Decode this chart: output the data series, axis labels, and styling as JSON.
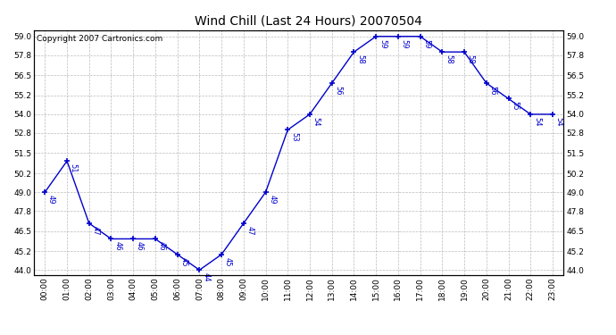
{
  "title": "Wind Chill (Last 24 Hours) 20070504",
  "copyright": "Copyright 2007 Cartronics.com",
  "x_labels": [
    "00:00",
    "01:00",
    "02:00",
    "03:00",
    "04:00",
    "05:00",
    "06:00",
    "07:00",
    "08:00",
    "09:00",
    "10:00",
    "11:00",
    "12:00",
    "13:00",
    "14:00",
    "15:00",
    "16:00",
    "17:00",
    "18:00",
    "19:00",
    "20:00",
    "21:00",
    "22:00",
    "23:00"
  ],
  "y_values": [
    49,
    51,
    47,
    46,
    46,
    46,
    45,
    44,
    45,
    47,
    49,
    53,
    54,
    56,
    58,
    59,
    59,
    59,
    58,
    58,
    56,
    55,
    54,
    54
  ],
  "y_labels": [
    44.0,
    45.2,
    46.5,
    47.8,
    49.0,
    50.2,
    51.5,
    52.8,
    54.0,
    55.2,
    56.5,
    57.8,
    59.0
  ],
  "ylim": [
    43.7,
    59.4
  ],
  "line_color": "#0000cc",
  "marker_color": "#0000cc",
  "bg_color": "#ffffff",
  "plot_bg_color": "#ffffff",
  "grid_color": "#bbbbbb",
  "title_fontsize": 10,
  "copyright_fontsize": 6.5,
  "label_fontsize": 6,
  "tick_fontsize": 6.5,
  "axis_label_color": "#000000"
}
